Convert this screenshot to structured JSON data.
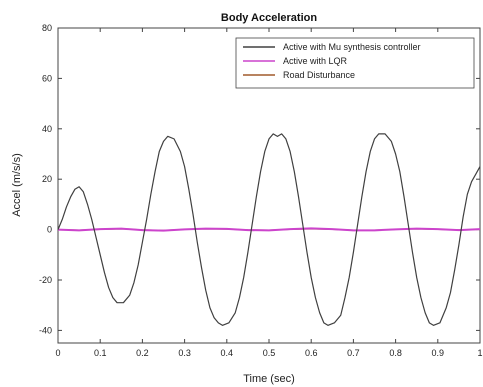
{
  "chart_data": {
    "type": "line",
    "title": "Body Acceleration",
    "xlabel": "Time (sec)",
    "ylabel": "Accel (m/s/s)",
    "xlim": [
      0,
      1
    ],
    "ylim": [
      -45,
      80
    ],
    "xticks": [
      0,
      0.1,
      0.2,
      0.3,
      0.4,
      0.5,
      0.6,
      0.7,
      0.8,
      0.9,
      1
    ],
    "xtick_labels": [
      "0",
      "0.1",
      "0.2",
      "0.3",
      "0.4",
      "0.5",
      "0.6",
      "0.7",
      "0.8",
      "0.9",
      "1"
    ],
    "yticks": [
      -40,
      -20,
      0,
      20,
      40,
      60,
      80
    ],
    "ytick_labels": [
      "-40",
      "-20",
      "0",
      "20",
      "40",
      "60",
      "80"
    ],
    "grid": false,
    "legend_position": "top-right",
    "series": [
      {
        "name": "Active with Mu synthesis controller",
        "color": "#404040",
        "x": [
          0,
          0.01,
          0.02,
          0.03,
          0.04,
          0.05,
          0.06,
          0.07,
          0.08,
          0.09,
          0.1,
          0.11,
          0.12,
          0.13,
          0.14,
          0.155,
          0.17,
          0.18,
          0.19,
          0.2,
          0.21,
          0.22,
          0.23,
          0.24,
          0.25,
          0.26,
          0.275,
          0.29,
          0.3,
          0.31,
          0.32,
          0.33,
          0.34,
          0.35,
          0.36,
          0.37,
          0.38,
          0.39,
          0.405,
          0.42,
          0.43,
          0.44,
          0.45,
          0.46,
          0.47,
          0.48,
          0.49,
          0.5,
          0.51,
          0.52,
          0.53,
          0.54,
          0.55,
          0.56,
          0.57,
          0.58,
          0.59,
          0.6,
          0.61,
          0.62,
          0.63,
          0.64,
          0.655,
          0.67,
          0.68,
          0.69,
          0.7,
          0.71,
          0.72,
          0.73,
          0.74,
          0.75,
          0.76,
          0.775,
          0.79,
          0.8,
          0.81,
          0.82,
          0.83,
          0.84,
          0.85,
          0.86,
          0.87,
          0.88,
          0.89,
          0.905,
          0.92,
          0.93,
          0.94,
          0.95,
          0.96,
          0.97,
          0.98,
          0.99,
          1.0
        ],
        "y": [
          0,
          4,
          9,
          13,
          16,
          17,
          15,
          10,
          4,
          -3,
          -10,
          -17,
          -23,
          -27,
          -29,
          -29,
          -26,
          -21,
          -14,
          -5,
          4,
          14,
          23,
          31,
          35,
          37,
          36,
          31,
          25,
          16,
          6,
          -5,
          -15,
          -24,
          -31,
          -35,
          -37,
          -38,
          -37,
          -33,
          -27,
          -19,
          -9,
          2,
          13,
          23,
          31,
          36,
          38,
          37,
          38,
          36,
          31,
          23,
          13,
          2,
          -9,
          -19,
          -27,
          -33,
          -37,
          -38,
          -37,
          -34,
          -27,
          -19,
          -9,
          2,
          13,
          23,
          31,
          36,
          38,
          38,
          35,
          30,
          23,
          13,
          2,
          -9,
          -19,
          -27,
          -33,
          -37,
          -38,
          -37,
          -31,
          -25,
          -16,
          -6,
          5,
          14,
          19,
          22,
          25
        ]
      },
      {
        "name": "Active with LQR",
        "color": "#cc44cc",
        "x": [
          0,
          0.05,
          0.1,
          0.15,
          0.2,
          0.25,
          0.3,
          0.35,
          0.4,
          0.45,
          0.5,
          0.55,
          0.6,
          0.65,
          0.7,
          0.75,
          0.8,
          0.85,
          0.9,
          0.95,
          1.0
        ],
        "y": [
          0,
          -0.3,
          0.2,
          0.4,
          -0.2,
          -0.4,
          0.1,
          0.4,
          0.3,
          -0.2,
          -0.3,
          0.2,
          0.5,
          0.2,
          -0.3,
          -0.3,
          0.1,
          0.4,
          0.2,
          -0.2,
          0.2
        ]
      },
      {
        "name": "Road Disturbance",
        "color": "#a05a2c",
        "x": [
          0,
          0.05,
          0.1,
          0.15,
          0.2,
          0.25,
          0.3,
          0.35,
          0.4,
          0.45,
          0.5,
          0.55,
          0.6,
          0.65,
          0.7,
          0.75,
          0.8,
          0.85,
          0.9,
          0.95,
          1.0
        ],
        "y": [
          0,
          -0.2,
          0.1,
          0.3,
          -0.1,
          -0.3,
          0.1,
          0.3,
          0.2,
          -0.1,
          -0.2,
          0.1,
          0.3,
          0.1,
          -0.2,
          -0.2,
          0.1,
          0.3,
          0.1,
          -0.1,
          0.1
        ]
      }
    ]
  }
}
